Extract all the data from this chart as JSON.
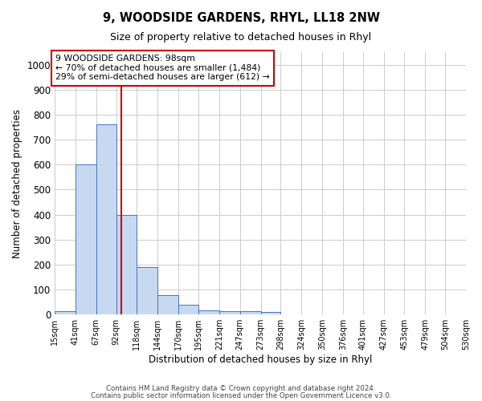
{
  "title": "9, WOODSIDE GARDENS, RHYL, LL18 2NW",
  "subtitle": "Size of property relative to detached houses in Rhyl",
  "xlabel": "Distribution of detached houses by size in Rhyl",
  "ylabel": "Number of detached properties",
  "annotation_line1": "9 WOODSIDE GARDENS: 98sqm",
  "annotation_line2": "← 70% of detached houses are smaller (1,484)",
  "annotation_line3": "29% of semi-detached houses are larger (612) →",
  "bin_edges": [
    15,
    41,
    67,
    92,
    118,
    144,
    170,
    195,
    221,
    247,
    273,
    298,
    324,
    350,
    376,
    401,
    427,
    453,
    479,
    504,
    530
  ],
  "bar_heights": [
    12,
    600,
    760,
    400,
    190,
    78,
    38,
    17,
    13,
    13,
    10,
    0,
    0,
    0,
    0,
    0,
    0,
    0,
    0,
    0
  ],
  "bar_color": "#c6d9f0",
  "bar_edge_color": "#4472c4",
  "vline_color": "#cc0000",
  "vline_x": 98,
  "annotation_box_color": "#cc0000",
  "background_color": "#ffffff",
  "grid_color": "#cccccc",
  "ylim": [
    0,
    1050
  ],
  "yticks": [
    0,
    100,
    200,
    300,
    400,
    500,
    600,
    700,
    800,
    900,
    1000
  ],
  "footer_line1": "Contains HM Land Registry data © Crown copyright and database right 2024.",
  "footer_line2": "Contains public sector information licensed under the Open Government Licence v3.0."
}
